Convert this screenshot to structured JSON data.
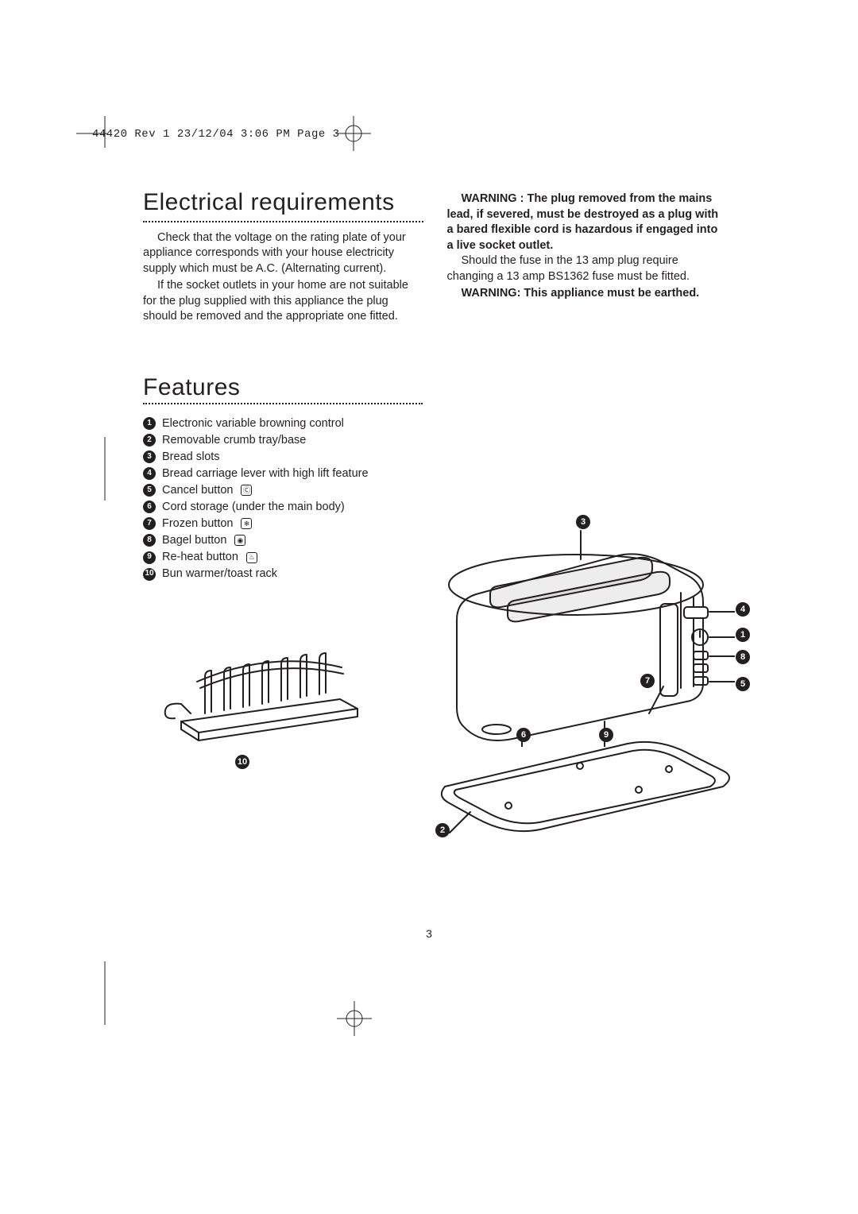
{
  "header": "44420 Rev 1  23/12/04  3:06 PM  Page 3",
  "page_number": "3",
  "sections": {
    "electrical": {
      "title": "Electrical requirements",
      "left_paras": [
        "Check that the voltage on the rating plate of your appliance corresponds with your house electricity supply which must be A.C. (Alternating current).",
        "If the socket outlets in your home are not suitable for the plug supplied with this appliance the plug should be removed and the appropriate one fitted."
      ],
      "right_bold1": "WARNING : The plug removed from the mains lead, if severed, must be destroyed as a plug with a bared flexible cord is hazardous if engaged into a live socket outlet.",
      "right_para": "Should the fuse in the 13 amp plug require changing a 13 amp BS1362 fuse must be fitted.",
      "right_bold2": "WARNING: This appliance must be earthed."
    },
    "features": {
      "title": "Features",
      "items": [
        {
          "n": "1",
          "label": "Electronic variable browning control",
          "icon": ""
        },
        {
          "n": "2",
          "label": "Removable crumb tray/base",
          "icon": ""
        },
        {
          "n": "3",
          "label": "Bread slots",
          "icon": ""
        },
        {
          "n": "4",
          "label": "Bread carriage lever with high lift feature",
          "icon": ""
        },
        {
          "n": "5",
          "label": "Cancel button",
          "icon": "Ⓒ"
        },
        {
          "n": "6",
          "label": "Cord storage (under the main body)",
          "icon": ""
        },
        {
          "n": "7",
          "label": "Frozen button",
          "icon": "❄"
        },
        {
          "n": "8",
          "label": "Bagel button",
          "icon": "◉"
        },
        {
          "n": "9",
          "label": "Re-heat button",
          "icon": "♨"
        },
        {
          "n": "10",
          "label": "Bun warmer/toast rack",
          "icon": ""
        }
      ]
    }
  },
  "colors": {
    "text": "#231f20",
    "bg": "#ffffff"
  },
  "callouts": [
    "1",
    "2",
    "3",
    "4",
    "5",
    "6",
    "7",
    "8",
    "9",
    "10"
  ]
}
